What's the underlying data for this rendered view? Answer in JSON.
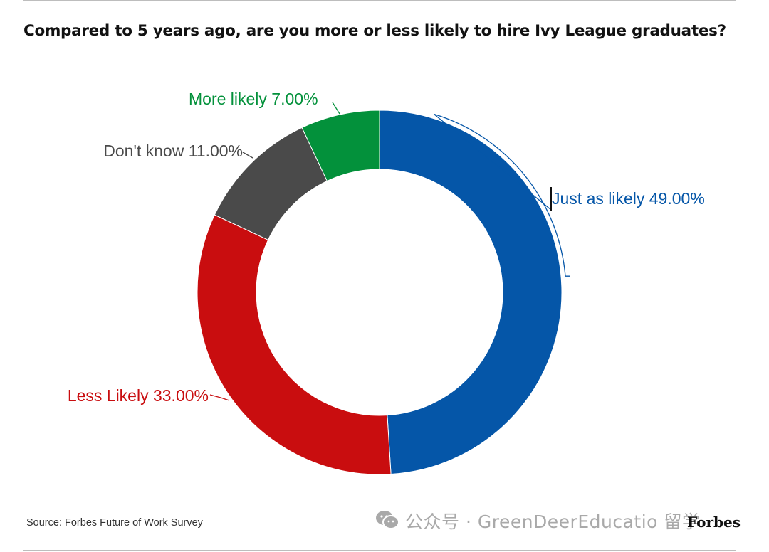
{
  "title": "Compared to 5 years ago, are you more or less likely to hire Ivy League graduates?",
  "source": "Source: Forbes Future of Work Survey",
  "brand": "Forbes",
  "watermark": {
    "text": "公众号 · GreenDeerEducatio 留学",
    "icon": "wechat-icon"
  },
  "chart_data": {
    "type": "pie",
    "donut": true,
    "title": "Compared to 5 years ago, are you more or less likely to hire Ivy League graduates?",
    "slices": [
      {
        "label": "Just as likely",
        "value": 49.0,
        "display": "Just as likely 49.00%",
        "color": "#0556a8"
      },
      {
        "label": "Less Likely",
        "value": 33.0,
        "display": "Less Likely 33.00%",
        "color": "#c90d0f"
      },
      {
        "label": "Don't know",
        "value": 11.0,
        "display": "Don't know 11.00%",
        "color": "#4a4a4a"
      },
      {
        "label": "More likely",
        "value": 7.0,
        "display": "More likely 7.00%",
        "color": "#03913b"
      }
    ],
    "start_angle_deg": 0,
    "direction": "clockwise",
    "legend": "none"
  }
}
